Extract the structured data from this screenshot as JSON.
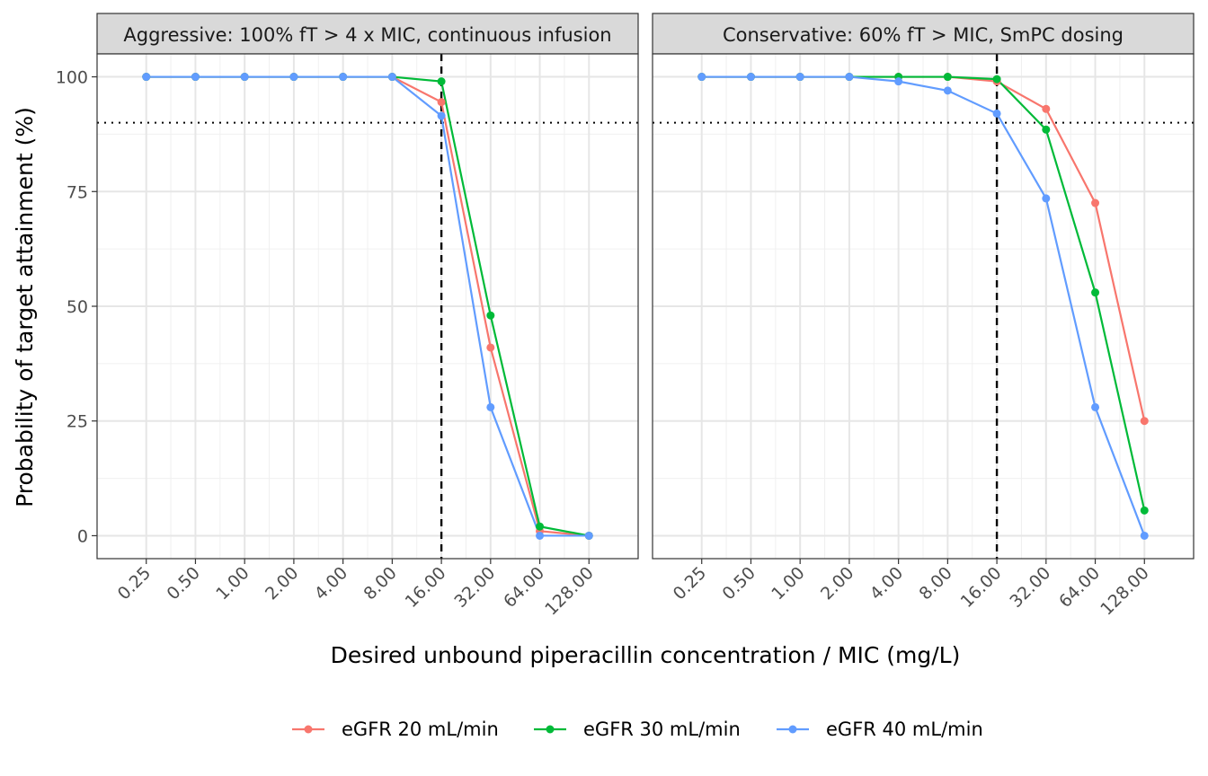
{
  "chart_data": {
    "type": "line",
    "xlabel": "Desired unbound piperacillin concentration / MIC (mg/L)",
    "ylabel": "Probability of target attainment (%)",
    "ylim": [
      -5,
      105
    ],
    "yticks": [
      "0",
      "25",
      "50",
      "75",
      "100"
    ],
    "ytick_values": [
      0,
      25,
      50,
      75,
      100
    ],
    "x_categories": [
      "0.25",
      "0.50",
      "1.00",
      "2.00",
      "4.00",
      "8.00",
      "16.00",
      "32.00",
      "64.00",
      "128.00"
    ],
    "reference_lines": {
      "horizontal_dotted_y": 90,
      "vertical_dashed_x": "16.00"
    },
    "grid": true,
    "legend_position": "bottom",
    "colors": {
      "eGFR 20 mL/min": "#F8766D",
      "eGFR 30 mL/min": "#00BA38",
      "eGFR 40 mL/min": "#619CFF"
    },
    "legend": [
      {
        "label": "eGFR 20 mL/min",
        "color": "#F8766D"
      },
      {
        "label": "eGFR 30 mL/min",
        "color": "#00BA38"
      },
      {
        "label": "eGFR 40 mL/min",
        "color": "#619CFF"
      }
    ],
    "panels": [
      {
        "title": "Aggressive: 100% fT > 4 x MIC, continuous infusion",
        "series": [
          {
            "name": "eGFR 20 mL/min",
            "values": [
              100,
              100,
              100,
              100,
              100,
              100,
              94.5,
              41,
              1,
              0
            ]
          },
          {
            "name": "eGFR 30 mL/min",
            "values": [
              100,
              100,
              100,
              100,
              100,
              100,
              99,
              48,
              2,
              0
            ]
          },
          {
            "name": "eGFR 40 mL/min",
            "values": [
              100,
              100,
              100,
              100,
              100,
              100,
              91.5,
              28,
              0,
              0
            ]
          }
        ]
      },
      {
        "title": "Conservative: 60% fT > MIC, SmPC dosing",
        "series": [
          {
            "name": "eGFR 20 mL/min",
            "values": [
              100,
              100,
              100,
              100,
              100,
              100,
              99,
              93,
              72.5,
              25
            ]
          },
          {
            "name": "eGFR 30 mL/min",
            "values": [
              100,
              100,
              100,
              100,
              100,
              100,
              99.5,
              88.5,
              53,
              5.5
            ]
          },
          {
            "name": "eGFR 40 mL/min",
            "values": [
              100,
              100,
              100,
              100,
              99,
              97,
              92,
              73.5,
              28,
              0
            ]
          }
        ]
      }
    ]
  }
}
